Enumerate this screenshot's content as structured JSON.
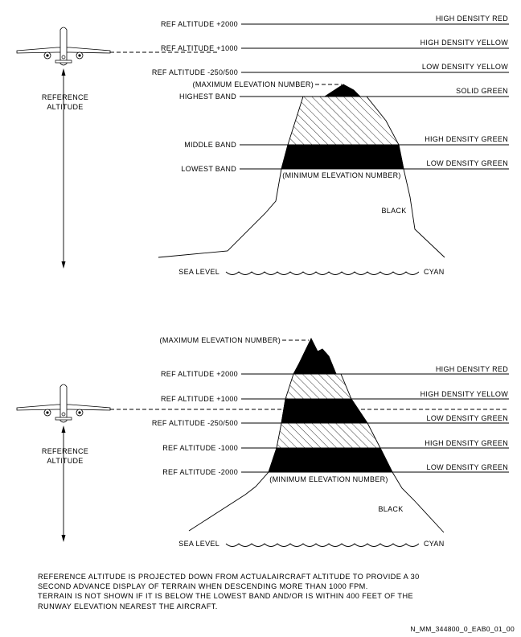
{
  "top": {
    "levels": [
      {
        "label": "REF ALTITUDE +2000",
        "color": "HIGH DENSITY RED"
      },
      {
        "label": "REF ALTITUDE +1000",
        "color": "HIGH DENSITY YELLOW"
      },
      {
        "label": "REF ALTITUDE -250/500",
        "color": "LOW DENSITY YELLOW"
      },
      {
        "label": "HIGHEST BAND",
        "color": "SOLID GREEN"
      },
      {
        "label": "MIDDLE BAND",
        "color": "HIGH DENSITY GREEN"
      },
      {
        "label": "LOWEST BAND",
        "color": "LOW DENSITY GREEN"
      }
    ],
    "max_elevation": "(MAXIMUM ELEVATION NUMBER)",
    "min_elevation": "(MINIMUM ELEVATION NUMBER)",
    "black": "BLACK",
    "sea_level": "SEA LEVEL",
    "cyan": "CYAN",
    "reference": [
      "REFERENCE",
      "ALTITUDE"
    ]
  },
  "bottom": {
    "levels": [
      {
        "label": "REF ALTITUDE +2000",
        "color": "HIGH DENSITY RED"
      },
      {
        "label": "REF ALTITUDE +1000",
        "color": "HIGH DENSITY YELLOW"
      },
      {
        "label": "REF ALTITUDE -250/500",
        "color": "LOW DENSITY GREEN"
      },
      {
        "label": "REF ALTITUDE -1000",
        "color": "HIGH DENSITY GREEN"
      },
      {
        "label": "REF ALTITUDE -2000",
        "color": "LOW DENSITY GREEN"
      }
    ],
    "max_elevation": "(MAXIMUM ELEVATION NUMBER)",
    "min_elevation": "(MINIMUM ELEVATION NUMBER)",
    "black": "BLACK",
    "sea_level": "SEA LEVEL",
    "cyan": "CYAN",
    "reference": [
      "REFERENCE",
      "ALTITUDE"
    ]
  },
  "notes": [
    "REFERENCE ALTITUDE IS PROJECTED DOWN FROM ACTUALAIRCRAFT ALTITUDE TO PROVIDE A 30",
    "SECOND ADVANCE DISPLAY OF TERRAIN WHEN DESCENDING MORE THAN 1000 FPM.",
    "TERRAIN IS NOT SHOWN IF IT IS BELOW THE LOWEST BAND AND/OR IS WITHIN 400 FEET OF THE",
    "RUNWAY  ELEVATION NEAREST THE AIRCRAFT."
  ],
  "doc_id": "N_MM_344800_0_EAB0_01_00"
}
